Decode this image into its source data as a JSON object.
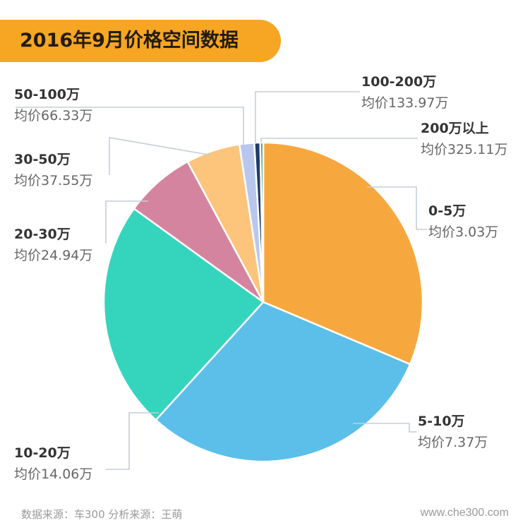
{
  "title": "2016年9月价格空间数据",
  "chart_data": {
    "type": "pie",
    "title": "2016年9月价格空间数据",
    "unit": "%",
    "slices": [
      {
        "name": "0-5万",
        "avg_label": "均价3.03万",
        "value": 31.5,
        "color": "#f6a83f"
      },
      {
        "name": "5-10万",
        "avg_label": "均价7.37万",
        "value": 30.5,
        "color": "#5bbfea"
      },
      {
        "name": "10-20万",
        "avg_label": "均价14.06万",
        "value": 23.3,
        "color": "#35d5bd"
      },
      {
        "name": "20-30万",
        "avg_label": "均价24.94万",
        "value": 7.2,
        "color": "#d4849f"
      },
      {
        "name": "30-50万",
        "avg_label": "均价37.55万",
        "value": 5.5,
        "color": "#fdc47c"
      },
      {
        "name": "50-100万",
        "avg_label": "均价66.33万",
        "value": 1.5,
        "color": "#b9c7ef"
      },
      {
        "name": "100-200万",
        "avg_label": "均价133.97万",
        "value": 0.6,
        "color": "#1f3b66"
      },
      {
        "name": "200万以上",
        "avg_label": "均价325.11万",
        "value": 0.3,
        "color": "#2d9a71"
      }
    ]
  },
  "footer": {
    "source": "数据来源：车300  分析来源：王萌",
    "website": "www.che300.com"
  }
}
